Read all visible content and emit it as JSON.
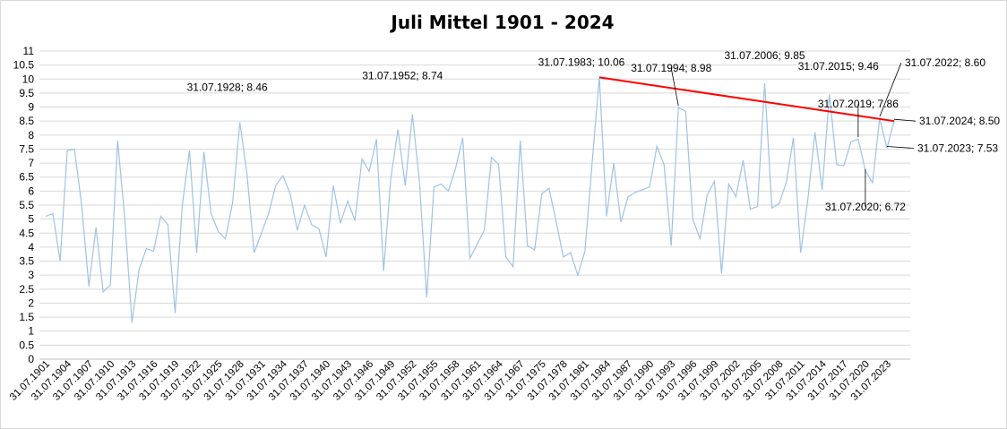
{
  "chart_data": {
    "type": "line",
    "title": "Juli Mittel 1901 - 2024",
    "xlabel": "",
    "ylabel": "",
    "ylim": [
      0,
      11
    ],
    "y_ticks": [
      "0",
      "0.5",
      "1",
      "1.5",
      "2",
      "2.5",
      "3",
      "3.5",
      "4",
      "4.5",
      "5",
      "5.5",
      "6",
      "6.5",
      "7",
      "7.5",
      "8",
      "8.5",
      "9",
      "9.5",
      "10",
      "10.5",
      "11"
    ],
    "grid": true,
    "legend": "none",
    "x_tick_labels": [
      "31.07.1901",
      "31.07.1904",
      "31.07.1907",
      "31.07.1910",
      "31.07.1913",
      "31.07.1916",
      "31.07.1919",
      "31.07.1922",
      "31.07.1925",
      "31.07.1928",
      "31.07.1931",
      "31.07.1934",
      "31.07.1937",
      "31.07.1940",
      "31.07.1943",
      "31.07.1946",
      "31.07.1949",
      "31.07.1952",
      "31.07.1955",
      "31.07.1958",
      "31.07.1961",
      "31.07.1964",
      "31.07.1967",
      "31.07.1975",
      "31.07.1978",
      "31.07.1981",
      "31.07.1984",
      "31.07.1987",
      "31.07.1990",
      "31.07.1993",
      "31.07.1996",
      "31.07.1999",
      "31.07.2002",
      "31.07.2005",
      "31.07.2008",
      "31.07.2011",
      "31.07.2014",
      "31.07.2017",
      "31.07.2020",
      "31.07.2023"
    ],
    "series": [
      {
        "color": "#9dc3e6",
        "values": [
          5.1,
          5.2,
          3.5,
          7.45,
          7.5,
          5.5,
          2.6,
          4.7,
          2.4,
          2.65,
          7.8,
          5.0,
          1.3,
          3.2,
          3.95,
          3.85,
          5.1,
          4.8,
          1.65,
          5.5,
          7.45,
          3.8,
          7.4,
          5.2,
          4.55,
          4.3,
          5.6,
          8.46,
          6.6,
          3.8,
          4.5,
          5.2,
          6.2,
          6.55,
          5.9,
          4.6,
          5.5,
          4.8,
          4.65,
          3.65,
          6.2,
          4.85,
          5.65,
          4.95,
          7.15,
          6.7,
          7.85,
          3.15,
          6.45,
          8.2,
          6.2,
          8.74,
          6.3,
          2.2,
          6.15,
          6.25,
          6.0,
          6.8,
          7.9,
          3.6,
          4.1,
          4.6,
          7.2,
          6.95,
          3.65,
          3.3,
          7.8,
          4.05,
          3.9,
          5.9,
          6.1,
          4.9,
          3.65,
          3.8,
          3.0,
          3.85,
          7.0,
          10.06,
          5.1,
          7.0,
          4.9,
          5.8,
          5.95,
          6.05,
          6.15,
          7.6,
          6.95,
          4.05,
          8.98,
          8.85,
          5.0,
          4.3,
          5.85,
          6.35,
          3.05,
          6.25,
          5.8,
          7.1,
          5.35,
          5.45,
          9.85,
          5.4,
          5.55,
          6.3,
          7.9,
          3.8,
          5.7,
          8.1,
          6.05,
          9.46,
          6.95,
          6.9,
          7.75,
          7.86,
          6.72,
          6.3,
          8.6,
          7.53,
          8.5
        ]
      },
      {
        "color": "#ff0000",
        "values": [
          10.06,
          8.5
        ]
      }
    ],
    "trend_range": [
      "31.07.1983",
      "31.07.2024"
    ],
    "annotations": [
      {
        "text": "31.07.1928; 8.46",
        "index": 27
      },
      {
        "text": "31.07.1952; 8.74",
        "index": 51
      },
      {
        "text": "31.07.1983; 10.06",
        "index": 77
      },
      {
        "text": "31.07.1994; 8.98",
        "index": 88
      },
      {
        "text": "31.07.2006; 9.85",
        "index": 100
      },
      {
        "text": "31.07.2015; 9.46",
        "index": 109
      },
      {
        "text": "31.07.2019; 7.86",
        "index": 113
      },
      {
        "text": "31.07.2020; 6.72",
        "index": 114
      },
      {
        "text": "31.07.2022; 8.60",
        "index": 116
      },
      {
        "text": "31.07.2023; 7.53",
        "index": 117
      },
      {
        "text": "31.07.2024; 8.50",
        "index": 118
      }
    ]
  }
}
